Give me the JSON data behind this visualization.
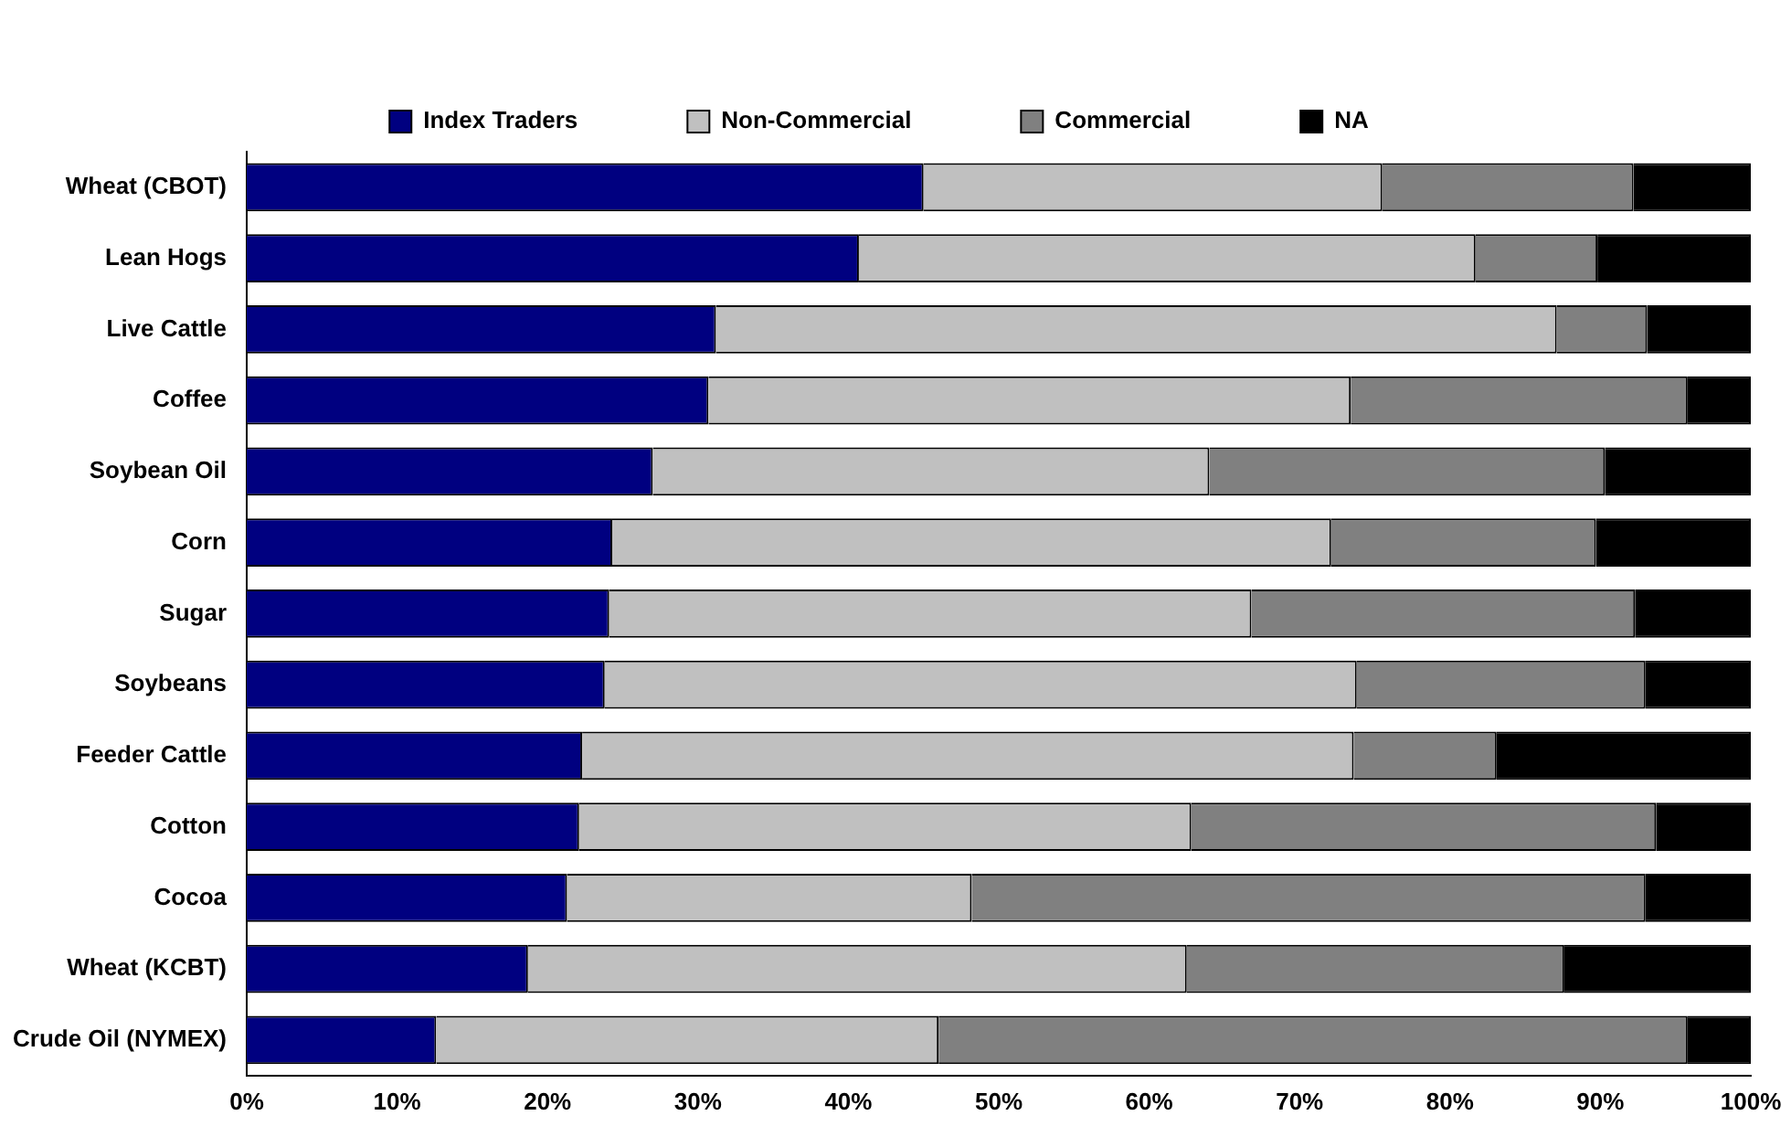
{
  "chart_data": {
    "type": "bar",
    "orientation": "horizontal",
    "stacked": true,
    "legend": "top",
    "grid": false,
    "categories": [
      "Wheat (CBOT)",
      "Lean Hogs",
      "Live Cattle",
      "Coffee",
      "Soybean Oil",
      "Corn",
      "Sugar",
      "Soybeans",
      "Feeder Cattle",
      "Cotton",
      "Cocoa",
      "Wheat (KCBT)",
      "Crude Oil (NYMEX)"
    ],
    "xlim": [
      0,
      100
    ],
    "xticks": [
      {
        "value": 0,
        "label": "0%"
      },
      {
        "value": 10,
        "label": "10%"
      },
      {
        "value": 20,
        "label": "20%"
      },
      {
        "value": 30,
        "label": "30%"
      },
      {
        "value": 40,
        "label": "40%"
      },
      {
        "value": 50,
        "label": "50%"
      },
      {
        "value": 60,
        "label": "60%"
      },
      {
        "value": 70,
        "label": "70%"
      },
      {
        "value": 80,
        "label": "80%"
      },
      {
        "value": 90,
        "label": "90%"
      },
      {
        "value": 100,
        "label": "100%"
      }
    ],
    "series": [
      {
        "name": "Index Traders",
        "color": "#000080",
        "values": [
          45,
          40.7,
          31.2,
          30.7,
          27,
          24.3,
          24.1,
          23.8,
          22.3,
          22.1,
          21.3,
          18.7,
          12.6
        ]
      },
      {
        "name": "Non-Commercial",
        "color": "#c0c0c0",
        "values": [
          30.5,
          41,
          55.9,
          42.7,
          37,
          47.8,
          42.7,
          50,
          51.3,
          40.7,
          26.9,
          43.8,
          33.4
        ]
      },
      {
        "name": "Commercial",
        "color": "#808080",
        "values": [
          16.7,
          8.1,
          6,
          22.4,
          26.3,
          17.6,
          25.5,
          19.2,
          9.5,
          30.9,
          44.8,
          25.1,
          49.8
        ]
      },
      {
        "name": "NA",
        "color": "#000000",
        "values": [
          7.8,
          10.2,
          6.9,
          4.2,
          9.7,
          10.3,
          7.7,
          7,
          16.9,
          6.3,
          7,
          12.4,
          4.2
        ]
      }
    ]
  }
}
